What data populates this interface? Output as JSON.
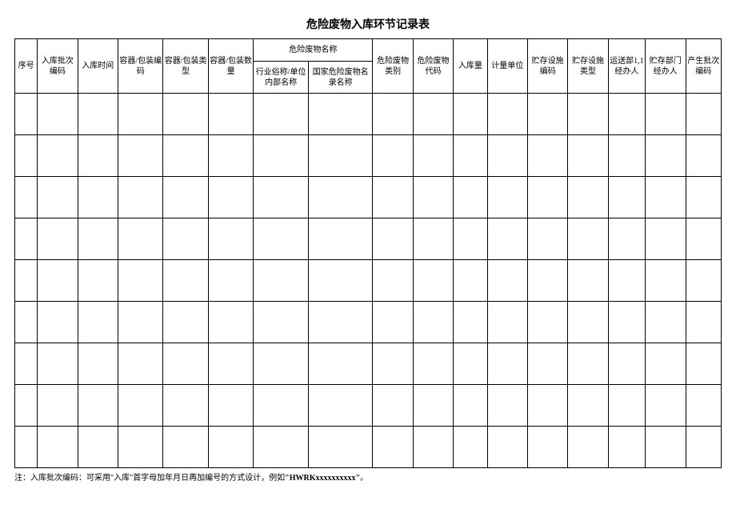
{
  "title": "危险废物入库环节记录表",
  "columns": {
    "c1": "序号",
    "c2": "入库批次编码",
    "c3": "入库时间",
    "c4": "容器/包装编码",
    "c5": "容器/包装类型",
    "c6": "容器/包装数量",
    "c7_group": "危险废物名称",
    "c7a": "行业俗称/单位内部名称",
    "c7b": "国家危险废物名录名称",
    "c8": "危险废物类别",
    "c9": "危险废物代码",
    "c10": "入库量",
    "c11": "计量单位",
    "c12": "贮存设施编码",
    "c13": "贮存设施类型",
    "c14": "运送部1,1经办人",
    "c15": "贮存部门经办人",
    "c16": "产生批次编码"
  },
  "col_widths": {
    "c1": 28,
    "c2": 50,
    "c3": 50,
    "c4": 56,
    "c5": 56,
    "c6": 56,
    "c7a": 68,
    "c7b": 80,
    "c8": 50,
    "c9": 50,
    "c10": 42,
    "c11": 50,
    "c12": 50,
    "c13": 50,
    "c14": 46,
    "c15": 50,
    "c16": 44
  },
  "data_row_count": 9,
  "column_count": 17,
  "footnote_prefix": "注：入库批次编码：可采用\"入库\"首字母加年月日再加编号的方式设计，例如",
  "footnote_code": "\"HWRKxxxxxxxxxx\"",
  "footnote_suffix": "。",
  "styling": {
    "background_color": "#ffffff",
    "border_color": "#000000",
    "title_fontsize": 14,
    "cell_fontsize": 10,
    "footnote_fontsize": 10,
    "data_row_height": 52
  }
}
